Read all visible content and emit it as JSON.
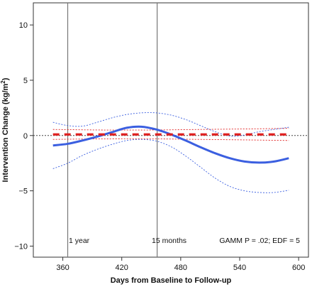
{
  "chart_data": {
    "type": "line",
    "xlabel": "Days from Baseline to Follow-up",
    "ylabel_main": "Intervention Change (kg/m",
    "ylabel_sup": "2",
    "ylabel_close": ")",
    "xlim": [
      330,
      610
    ],
    "ylim": [
      -11,
      12
    ],
    "xticks": [
      360,
      420,
      480,
      540,
      600
    ],
    "yticks": [
      10,
      5,
      0,
      -5,
      -10
    ],
    "reference_lines_x": [
      365,
      456
    ],
    "reference_line_y": 0,
    "annotations": {
      "one_year": "1 year",
      "fifteen_months": "15 months",
      "stats": "GAMM P = .02; EDF = 5"
    },
    "colors": {
      "intervention": "#3b5fe0",
      "control": "#e02020",
      "reference": "#777777"
    },
    "series": [
      {
        "role": "intervention-fit",
        "x": [
          350,
          365,
          380,
          395,
          410,
          425,
          440,
          455,
          470,
          485,
          500,
          515,
          530,
          545,
          560,
          575,
          590
        ],
        "y": [
          -0.9,
          -0.75,
          -0.45,
          -0.1,
          0.3,
          0.7,
          0.8,
          0.55,
          0.1,
          -0.45,
          -1.05,
          -1.6,
          -2.05,
          -2.35,
          -2.45,
          -2.35,
          -2.05
        ]
      },
      {
        "role": "intervention-upper-ci",
        "x": [
          350,
          365,
          380,
          395,
          410,
          425,
          440,
          455,
          470,
          485,
          500,
          515,
          530,
          545,
          560,
          575,
          590
        ],
        "y": [
          1.2,
          0.9,
          0.85,
          1.2,
          1.6,
          1.9,
          2.05,
          2.05,
          1.85,
          1.45,
          0.9,
          0.35,
          -0.05,
          0.05,
          0.35,
          0.55,
          0.75
        ]
      },
      {
        "role": "intervention-lower-ci",
        "x": [
          350,
          365,
          380,
          395,
          410,
          425,
          440,
          455,
          470,
          485,
          500,
          515,
          530,
          545,
          560,
          575,
          590
        ],
        "y": [
          -3.0,
          -2.5,
          -1.8,
          -1.25,
          -0.8,
          -0.45,
          -0.35,
          -0.5,
          -1.0,
          -1.85,
          -2.85,
          -3.85,
          -4.6,
          -5.0,
          -5.15,
          -5.15,
          -4.95
        ]
      },
      {
        "role": "control-fit",
        "x": [
          350,
          590
        ],
        "y": [
          0.1,
          0.1
        ]
      },
      {
        "role": "control-upper-ci",
        "x": [
          350,
          400,
          450,
          500,
          550,
          590
        ],
        "y": [
          0.55,
          0.5,
          0.5,
          0.55,
          0.6,
          0.65
        ]
      },
      {
        "role": "control-lower-ci",
        "x": [
          350,
          400,
          450,
          500,
          550,
          590
        ],
        "y": [
          -0.35,
          -0.3,
          -0.3,
          -0.35,
          -0.4,
          -0.45
        ]
      }
    ]
  }
}
